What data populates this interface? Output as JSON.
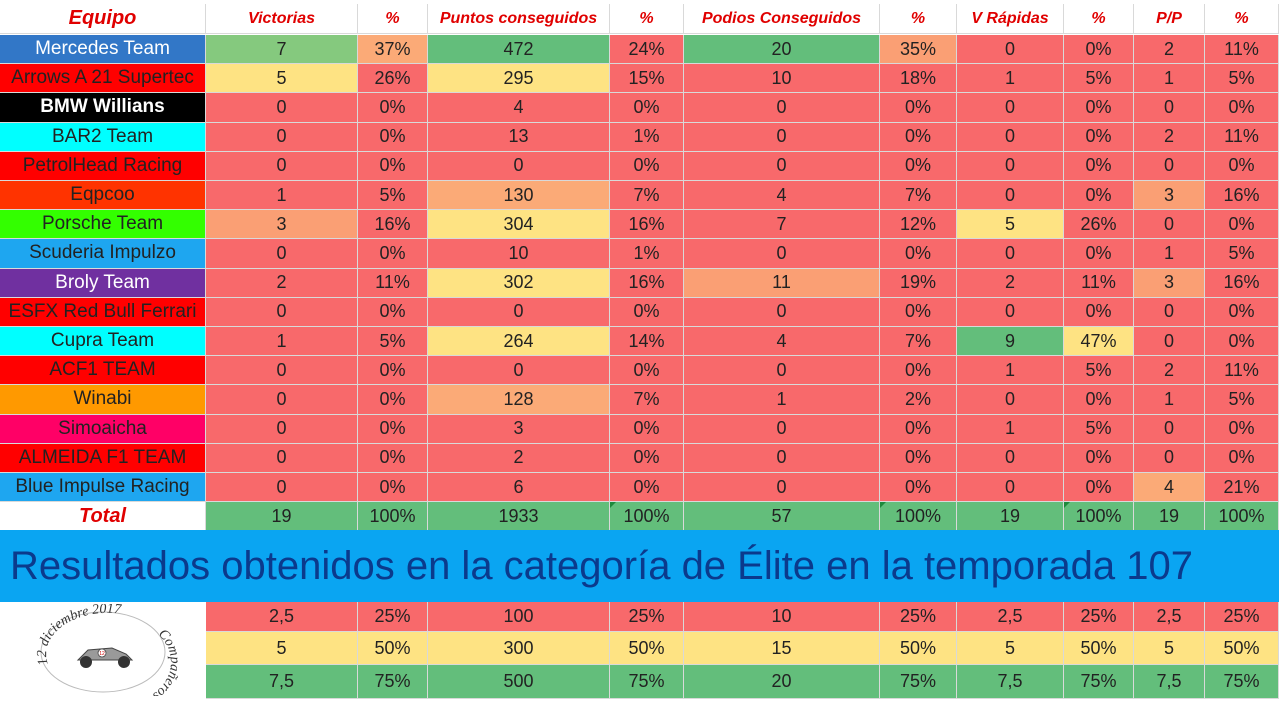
{
  "colors": {
    "red": "#f8696b",
    "yellow": "#fee383",
    "green": "#63be7b",
    "light_green": "#85c97e",
    "orange": "#fbaa77",
    "orange2": "#fa9f74",
    "banner": "#0aa5f2",
    "banner_text": "#0b3a8c",
    "header_text": "#e00000"
  },
  "headers": [
    "Equipo",
    "Victorias",
    "%",
    "Puntos conseguidos",
    "%",
    "Podios Conseguidos",
    "%",
    "V Rápidas",
    "%",
    "P/P",
    "%"
  ],
  "teams": [
    {
      "name": "Mercedes Team",
      "bg": "#3277c7",
      "fg": "#ffffff",
      "bold": false,
      "vals": [
        "7",
        "37%",
        "472",
        "24%",
        "20",
        "35%",
        "0",
        "0%",
        "2",
        "11%"
      ],
      "cls": [
        "lg",
        "o",
        "g",
        "r",
        "g",
        "o2",
        "r",
        "r",
        "r",
        "r"
      ]
    },
    {
      "name": "Arrows A 21 Supertec",
      "bg": "#ff0000",
      "fg": "#222222",
      "bold": false,
      "vals": [
        "5",
        "26%",
        "295",
        "15%",
        "10",
        "18%",
        "1",
        "5%",
        "1",
        "5%"
      ],
      "cls": [
        "y",
        "r",
        "y",
        "r",
        "r",
        "r",
        "r",
        "r",
        "r",
        "r"
      ]
    },
    {
      "name": "BMW Willians",
      "bg": "#000000",
      "fg": "#ffffff",
      "bold": true,
      "vals": [
        "0",
        "0%",
        "4",
        "0%",
        "0",
        "0%",
        "0",
        "0%",
        "0",
        "0%"
      ],
      "cls": [
        "r",
        "r",
        "r",
        "r",
        "r",
        "r",
        "r",
        "r",
        "r",
        "r"
      ]
    },
    {
      "name": "BAR2 Team",
      "bg": "#00ffff",
      "fg": "#222222",
      "bold": false,
      "vals": [
        "0",
        "0%",
        "13",
        "1%",
        "0",
        "0%",
        "0",
        "0%",
        "2",
        "11%"
      ],
      "cls": [
        "r",
        "r",
        "r",
        "r",
        "r",
        "r",
        "r",
        "r",
        "r",
        "r"
      ]
    },
    {
      "name": "PetrolHead Racing",
      "bg": "#ff0000",
      "fg": "#222222",
      "bold": false,
      "vals": [
        "0",
        "0%",
        "0",
        "0%",
        "0",
        "0%",
        "0",
        "0%",
        "0",
        "0%"
      ],
      "cls": [
        "r",
        "r",
        "r",
        "r",
        "r",
        "r",
        "r",
        "r",
        "r",
        "r"
      ]
    },
    {
      "name": "Eqpcoo",
      "bg": "#ff3300",
      "fg": "#222222",
      "bold": false,
      "vals": [
        "1",
        "5%",
        "130",
        "7%",
        "4",
        "7%",
        "0",
        "0%",
        "3",
        "16%"
      ],
      "cls": [
        "r",
        "r",
        "o",
        "r",
        "r",
        "r",
        "r",
        "r",
        "o2",
        "r"
      ]
    },
    {
      "name": "Porsche Team",
      "bg": "#33ff00",
      "fg": "#222222",
      "bold": false,
      "vals": [
        "3",
        "16%",
        "304",
        "16%",
        "7",
        "12%",
        "5",
        "26%",
        "0",
        "0%"
      ],
      "cls": [
        "o2",
        "r",
        "y",
        "r",
        "r",
        "r",
        "y",
        "r",
        "r",
        "r"
      ]
    },
    {
      "name": "Scuderia Impulzo",
      "bg": "#1ea6f0",
      "fg": "#222222",
      "bold": false,
      "vals": [
        "0",
        "0%",
        "10",
        "1%",
        "0",
        "0%",
        "0",
        "0%",
        "1",
        "5%"
      ],
      "cls": [
        "r",
        "r",
        "r",
        "r",
        "r",
        "r",
        "r",
        "r",
        "r",
        "r"
      ]
    },
    {
      "name": "Broly Team",
      "bg": "#7030a0",
      "fg": "#ffffff",
      "bold": false,
      "vals": [
        "2",
        "11%",
        "302",
        "16%",
        "11",
        "19%",
        "2",
        "11%",
        "3",
        "16%"
      ],
      "cls": [
        "r",
        "r",
        "y",
        "r",
        "o2",
        "r",
        "r",
        "r",
        "o2",
        "r"
      ]
    },
    {
      "name": "ESFX Red Bull Ferrari",
      "bg": "#ff0000",
      "fg": "#222222",
      "bold": false,
      "vals": [
        "0",
        "0%",
        "0",
        "0%",
        "0",
        "0%",
        "0",
        "0%",
        "0",
        "0%"
      ],
      "cls": [
        "r",
        "r",
        "r",
        "r",
        "r",
        "r",
        "r",
        "r",
        "r",
        "r"
      ]
    },
    {
      "name": "Cupra Team",
      "bg": "#00ffff",
      "fg": "#222222",
      "bold": false,
      "vals": [
        "1",
        "5%",
        "264",
        "14%",
        "4",
        "7%",
        "9",
        "47%",
        "0",
        "0%"
      ],
      "cls": [
        "r",
        "r",
        "y",
        "r",
        "r",
        "r",
        "g",
        "y",
        "r",
        "r"
      ]
    },
    {
      "name": "ACF1 TEAM",
      "bg": "#ff0000",
      "fg": "#222222",
      "bold": false,
      "vals": [
        "0",
        "0%",
        "0",
        "0%",
        "0",
        "0%",
        "1",
        "5%",
        "2",
        "11%"
      ],
      "cls": [
        "r",
        "r",
        "r",
        "r",
        "r",
        "r",
        "r",
        "r",
        "r",
        "r"
      ]
    },
    {
      "name": "Winabi",
      "bg": "#ff9900",
      "fg": "#222222",
      "bold": false,
      "vals": [
        "0",
        "0%",
        "128",
        "7%",
        "1",
        "2%",
        "0",
        "0%",
        "1",
        "5%"
      ],
      "cls": [
        "r",
        "r",
        "o",
        "r",
        "r",
        "r",
        "r",
        "r",
        "r",
        "r"
      ]
    },
    {
      "name": "Simoaicha",
      "bg": "#ff0066",
      "fg": "#222222",
      "bold": false,
      "vals": [
        "0",
        "0%",
        "3",
        "0%",
        "0",
        "0%",
        "1",
        "5%",
        "0",
        "0%"
      ],
      "cls": [
        "r",
        "r",
        "r",
        "r",
        "r",
        "r",
        "r",
        "r",
        "r",
        "r"
      ]
    },
    {
      "name": "ALMEIDA F1 TEAM",
      "bg": "#ff0000",
      "fg": "#222222",
      "bold": false,
      "vals": [
        "0",
        "0%",
        "2",
        "0%",
        "0",
        "0%",
        "0",
        "0%",
        "0",
        "0%"
      ],
      "cls": [
        "r",
        "r",
        "r",
        "r",
        "r",
        "r",
        "r",
        "r",
        "r",
        "r"
      ]
    },
    {
      "name": "Blue Impulse Racing",
      "bg": "#1ea6f0",
      "fg": "#222222",
      "bold": false,
      "vals": [
        "0",
        "0%",
        "6",
        "0%",
        "0",
        "0%",
        "0",
        "0%",
        "4",
        "21%"
      ],
      "cls": [
        "r",
        "r",
        "r",
        "r",
        "r",
        "r",
        "r",
        "r",
        "o",
        "r"
      ]
    }
  ],
  "total": {
    "label": "Total",
    "vals": [
      "19",
      "100%",
      "1933",
      "100%",
      "57",
      "100%",
      "19",
      "100%",
      "19",
      "100%"
    ]
  },
  "banner": "Resultados obtenidos en la categoría de Élite en la temporada 107",
  "thresholds": [
    {
      "vals": [
        "2,5",
        "25%",
        "100",
        "25%",
        "10",
        "25%",
        "2,5",
        "25%",
        "2,5",
        "25%"
      ],
      "color": "red"
    },
    {
      "vals": [
        "5",
        "50%",
        "300",
        "50%",
        "15",
        "50%",
        "5",
        "50%",
        "5",
        "50%"
      ],
      "color": "yellow"
    },
    {
      "vals": [
        "7,5",
        "75%",
        "500",
        "75%",
        "20",
        "75%",
        "7,5",
        "75%",
        "7,5",
        "75%"
      ],
      "color": "green"
    }
  ],
  "logo": {
    "text_top": "12 diciembre 2017",
    "text_bottom": "Compañeros del Motor",
    "car_number": "12"
  }
}
